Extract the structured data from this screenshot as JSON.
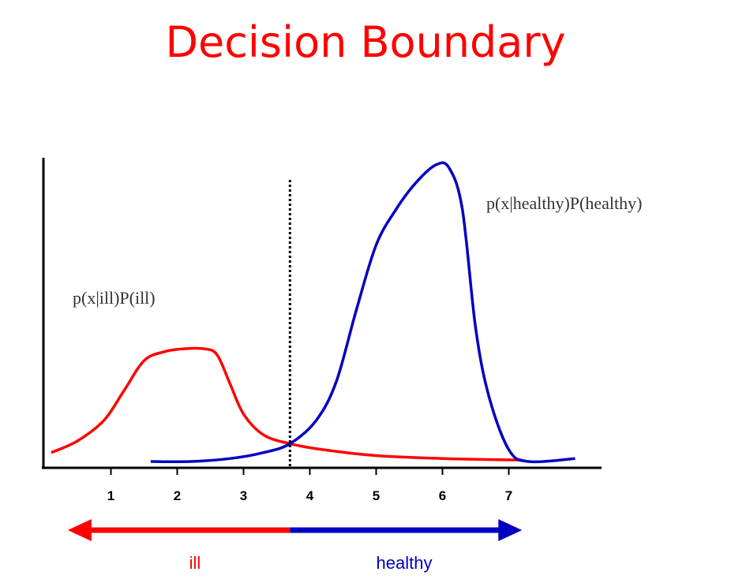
{
  "title": "Decision Boundary",
  "chart_data": {
    "type": "line",
    "x_ticks": [
      1,
      2,
      3,
      4,
      5,
      6,
      7
    ],
    "xlim": [
      0,
      8
    ],
    "ylim": [
      0,
      1
    ],
    "decision_boundary": 3.7,
    "series": [
      {
        "name": "p(x|ill)P(ill)",
        "color": "#ff0000",
        "points": [
          [
            0.1,
            0.03
          ],
          [
            0.5,
            0.07
          ],
          [
            0.9,
            0.14
          ],
          [
            1.2,
            0.24
          ],
          [
            1.5,
            0.34
          ],
          [
            1.8,
            0.37
          ],
          [
            2.1,
            0.38
          ],
          [
            2.4,
            0.38
          ],
          [
            2.6,
            0.36
          ],
          [
            2.8,
            0.26
          ],
          [
            3.0,
            0.16
          ],
          [
            3.3,
            0.09
          ],
          [
            3.7,
            0.06
          ],
          [
            4.2,
            0.04
          ],
          [
            5.0,
            0.02
          ],
          [
            6.0,
            0.01
          ],
          [
            7.2,
            0.005
          ]
        ]
      },
      {
        "name": "p(x|healthy)P(healthy)",
        "color": "#0000c0",
        "points": [
          [
            1.6,
            0.0
          ],
          [
            2.2,
            0.0
          ],
          [
            2.8,
            0.01
          ],
          [
            3.3,
            0.03
          ],
          [
            3.7,
            0.06
          ],
          [
            4.1,
            0.14
          ],
          [
            4.4,
            0.27
          ],
          [
            4.7,
            0.51
          ],
          [
            5.0,
            0.73
          ],
          [
            5.3,
            0.85
          ],
          [
            5.6,
            0.94
          ],
          [
            5.9,
            1.0
          ],
          [
            6.1,
            0.99
          ],
          [
            6.3,
            0.85
          ],
          [
            6.5,
            0.45
          ],
          [
            6.7,
            0.22
          ],
          [
            7.0,
            0.04
          ],
          [
            7.3,
            0.0
          ],
          [
            8.0,
            0.01
          ]
        ]
      }
    ],
    "regions": {
      "left": {
        "label": "ill",
        "color": "#ff0000"
      },
      "right": {
        "label": "healthy",
        "color": "#0000c0"
      }
    },
    "annotations": [
      {
        "text": "p(x|ill)P(ill)",
        "series": 0
      },
      {
        "text": "p(x|healthy)P(healthy)",
        "series": 1
      }
    ]
  }
}
